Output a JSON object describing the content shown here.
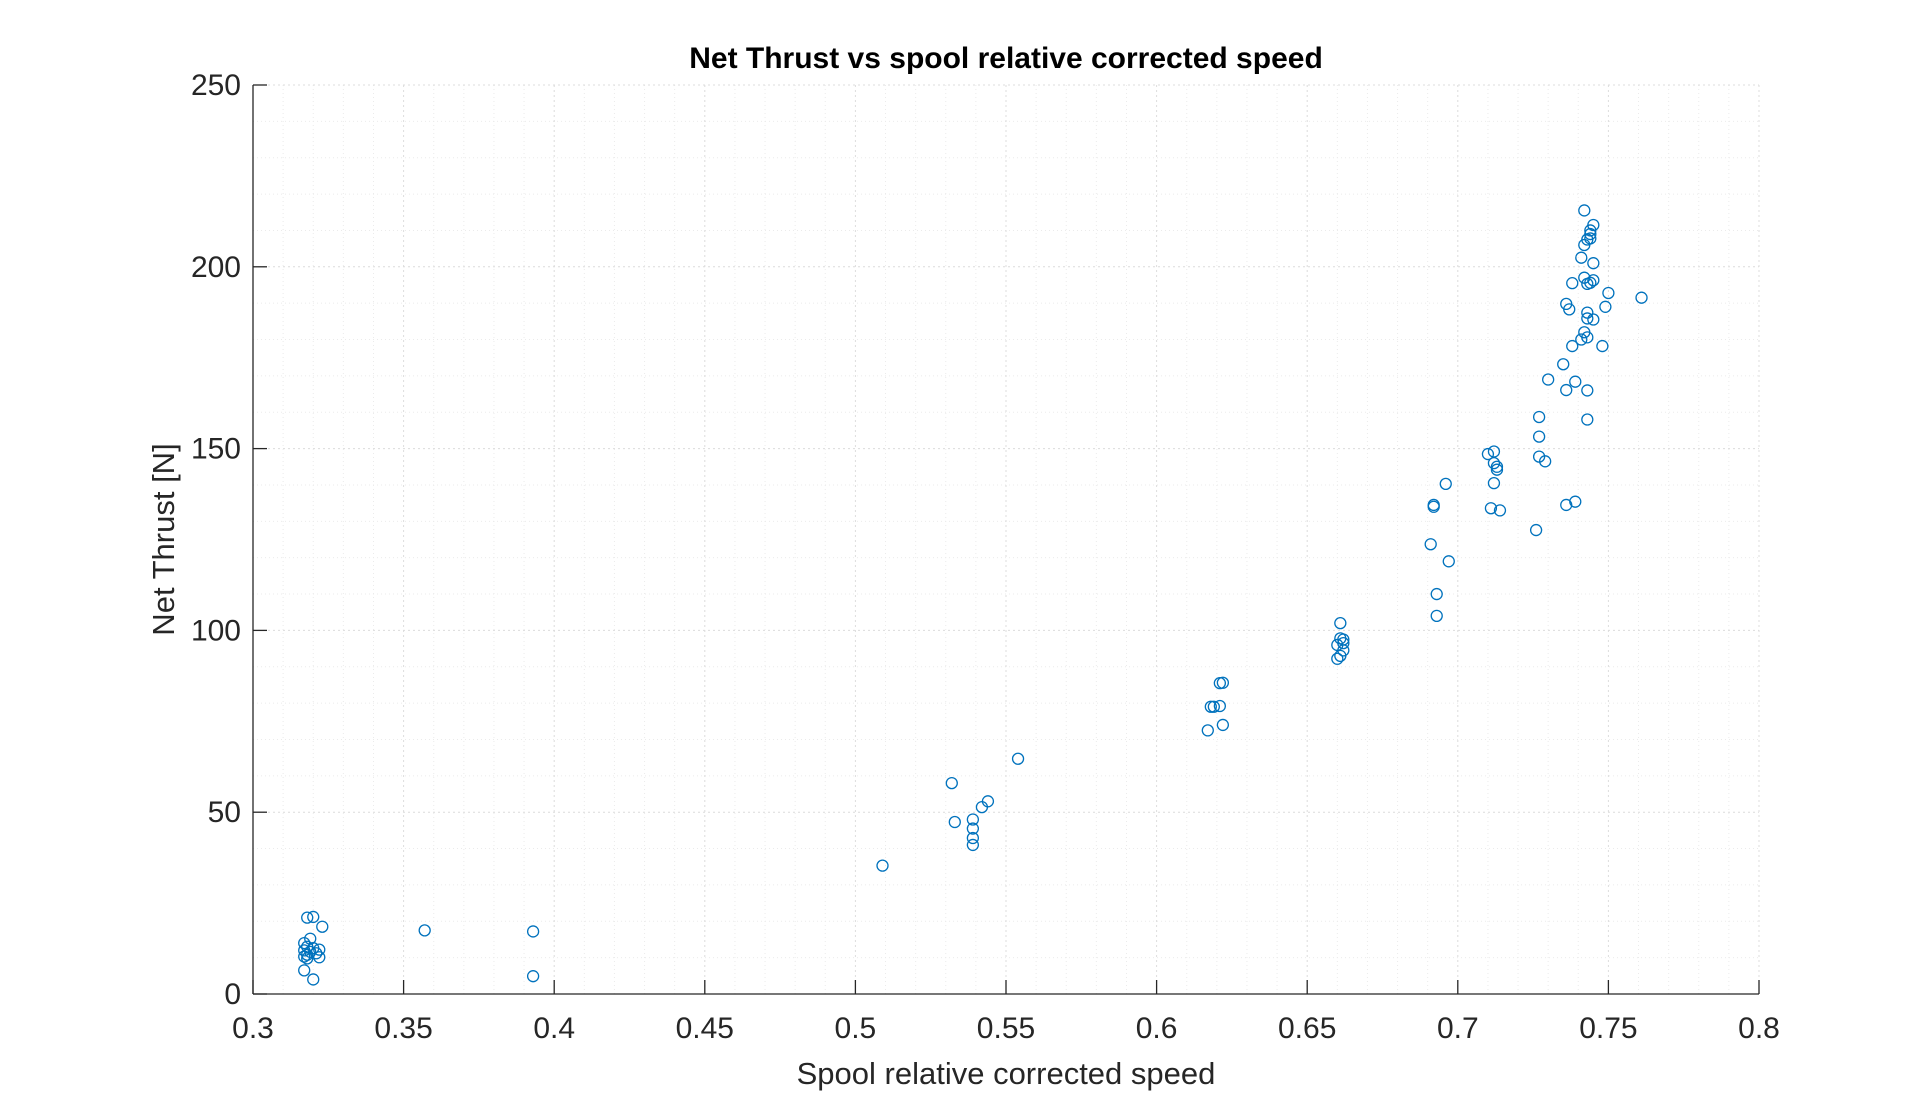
{
  "chart_data": {
    "type": "scatter",
    "title": "Net Thrust vs spool relative corrected speed",
    "xlabel": "Spool relative corrected speed",
    "ylabel": "Net Thrust [N]",
    "xlim": [
      0.3,
      0.8
    ],
    "ylim": [
      0,
      250
    ],
    "xticks": [
      0.3,
      0.35,
      0.4,
      0.45,
      0.5,
      0.55,
      0.6,
      0.65,
      0.7,
      0.75,
      0.8
    ],
    "xtick_labels": [
      "0.3",
      "0.35",
      "0.4",
      "0.45",
      "0.5",
      "0.55",
      "0.6",
      "0.65",
      "0.7",
      "0.75",
      "0.8"
    ],
    "yticks": [
      0,
      50,
      100,
      150,
      200,
      250
    ],
    "ytick_labels": [
      "0",
      "50",
      "100",
      "150",
      "200",
      "250"
    ],
    "grid": true,
    "minor_grid": true,
    "marker": "circle-open",
    "color": "#0072BD",
    "points": [
      [
        0.318,
        21.0
      ],
      [
        0.32,
        21.2
      ],
      [
        0.323,
        18.5
      ],
      [
        0.319,
        15.2
      ],
      [
        0.317,
        14.0
      ],
      [
        0.318,
        13.0
      ],
      [
        0.32,
        12.6
      ],
      [
        0.322,
        12.2
      ],
      [
        0.317,
        12.0
      ],
      [
        0.319,
        11.6
      ],
      [
        0.321,
        11.2
      ],
      [
        0.318,
        10.8
      ],
      [
        0.317,
        10.3
      ],
      [
        0.322,
        10.1
      ],
      [
        0.318,
        9.8
      ],
      [
        0.317,
        6.5
      ],
      [
        0.32,
        4.0
      ],
      [
        0.357,
        17.5
      ],
      [
        0.393,
        17.2
      ],
      [
        0.393,
        4.9
      ],
      [
        0.509,
        35.3
      ],
      [
        0.532,
        58.0
      ],
      [
        0.533,
        47.3
      ],
      [
        0.554,
        64.7
      ],
      [
        0.544,
        53.0
      ],
      [
        0.542,
        51.4
      ],
      [
        0.539,
        48.0
      ],
      [
        0.539,
        45.5
      ],
      [
        0.539,
        42.9
      ],
      [
        0.539,
        41.0
      ],
      [
        0.617,
        72.5
      ],
      [
        0.618,
        79.0
      ],
      [
        0.619,
        79.0
      ],
      [
        0.621,
        79.2
      ],
      [
        0.621,
        85.5
      ],
      [
        0.622,
        85.6
      ],
      [
        0.622,
        74.0
      ],
      [
        0.661,
        102.0
      ],
      [
        0.661,
        97.8
      ],
      [
        0.662,
        97.5
      ],
      [
        0.662,
        96.5
      ],
      [
        0.66,
        96.0
      ],
      [
        0.662,
        94.5
      ],
      [
        0.661,
        93.0
      ],
      [
        0.66,
        92.2
      ],
      [
        0.692,
        134.5
      ],
      [
        0.692,
        134.0
      ],
      [
        0.696,
        140.3
      ],
      [
        0.691,
        123.7
      ],
      [
        0.697,
        119.0
      ],
      [
        0.693,
        110.0
      ],
      [
        0.693,
        104.0
      ],
      [
        0.71,
        148.5
      ],
      [
        0.712,
        149.2
      ],
      [
        0.712,
        146.0
      ],
      [
        0.713,
        145.0
      ],
      [
        0.713,
        144.2
      ],
      [
        0.712,
        140.5
      ],
      [
        0.711,
        133.6
      ],
      [
        0.714,
        133.0
      ],
      [
        0.727,
        158.7
      ],
      [
        0.727,
        153.3
      ],
      [
        0.727,
        147.8
      ],
      [
        0.729,
        146.5
      ],
      [
        0.73,
        169.0
      ],
      [
        0.726,
        127.6
      ],
      [
        0.736,
        134.5
      ],
      [
        0.739,
        135.4
      ],
      [
        0.735,
        173.2
      ],
      [
        0.736,
        166.1
      ],
      [
        0.739,
        168.4
      ],
      [
        0.743,
        166.0
      ],
      [
        0.743,
        158.0
      ],
      [
        0.738,
        178.2
      ],
      [
        0.741,
        180.0
      ],
      [
        0.742,
        182.0
      ],
      [
        0.743,
        180.6
      ],
      [
        0.745,
        185.5
      ],
      [
        0.743,
        185.8
      ],
      [
        0.743,
        187.4
      ],
      [
        0.736,
        189.8
      ],
      [
        0.737,
        188.3
      ],
      [
        0.748,
        178.2
      ],
      [
        0.749,
        189.0
      ],
      [
        0.75,
        192.8
      ],
      [
        0.761,
        191.5
      ],
      [
        0.738,
        195.5
      ],
      [
        0.742,
        197.0
      ],
      [
        0.743,
        195.3
      ],
      [
        0.744,
        195.6
      ],
      [
        0.745,
        196.3
      ],
      [
        0.741,
        202.5
      ],
      [
        0.745,
        201.0
      ],
      [
        0.742,
        206.0
      ],
      [
        0.743,
        207.5
      ],
      [
        0.744,
        207.8
      ],
      [
        0.744,
        209.0
      ],
      [
        0.744,
        210.0
      ],
      [
        0.745,
        211.5
      ],
      [
        0.742,
        215.5
      ]
    ]
  }
}
